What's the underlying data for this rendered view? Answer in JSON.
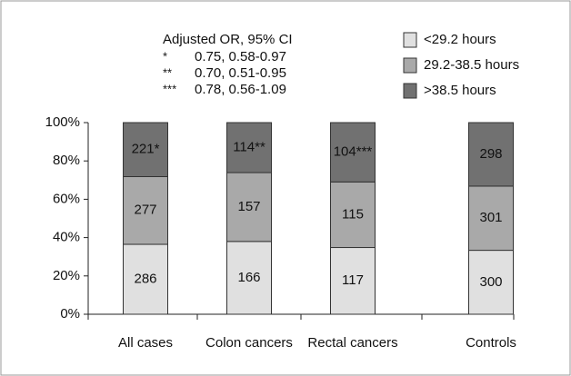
{
  "chart_data": {
    "type": "percent_stacked_bar",
    "categories": [
      "All cases",
      "Colon cancers",
      "Rectal cancers",
      "Controls"
    ],
    "series": [
      {
        "name": "<29.2 hours",
        "color": "#e0e0e0",
        "values": [
          286,
          166,
          117,
          300
        ]
      },
      {
        "name": "29.2-38.5 hours",
        "color": "#a9a9a9",
        "values": [
          277,
          157,
          115,
          301
        ]
      },
      {
        "name": ">38.5 hours",
        "color": "#717171",
        "values": [
          221,
          114,
          104,
          298
        ],
        "value_labels": [
          "221*",
          "114**",
          "104***",
          "298"
        ]
      }
    ],
    "ylim": [
      0,
      100
    ],
    "yticks": [
      {
        "value": 0,
        "label": "0%"
      },
      {
        "value": 20,
        "label": "20%"
      },
      {
        "value": 40,
        "label": "40%"
      },
      {
        "value": 60,
        "label": "60%"
      },
      {
        "value": 80,
        "label": "80%"
      },
      {
        "value": 100,
        "label": "100%"
      }
    ],
    "annotation": {
      "title": "Adjusted OR, 95% CI",
      "rows": [
        [
          "*",
          "0.75, 0.58-0.97"
        ],
        [
          "**",
          "0.70, 0.51-0.95"
        ],
        [
          "***",
          "0.78, 0.56-1.09"
        ]
      ]
    },
    "legend": "top-right"
  }
}
